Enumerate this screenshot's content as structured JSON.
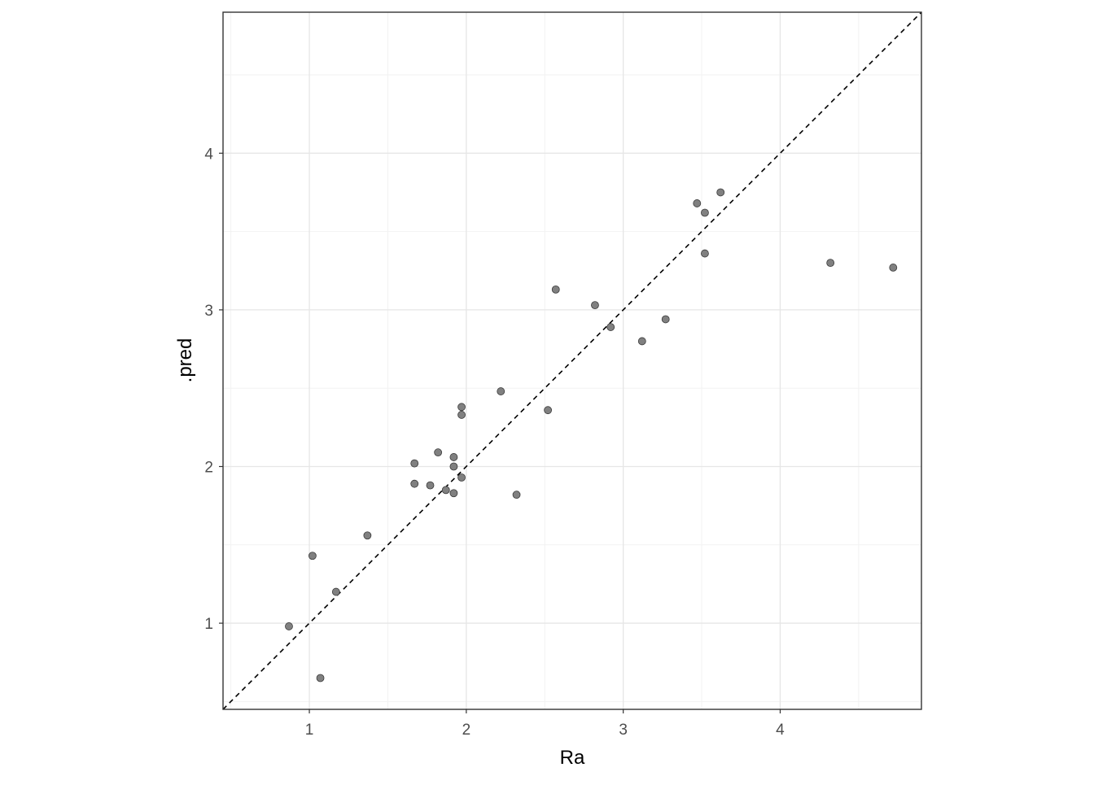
{
  "chart_data": {
    "type": "scatter",
    "title": "",
    "xlabel": "Ra",
    "ylabel": ".pred",
    "xlim": [
      0.45,
      4.9
    ],
    "ylim": [
      0.45,
      4.9
    ],
    "x_ticks": [
      1,
      2,
      3,
      4
    ],
    "y_ticks": [
      1,
      2,
      3,
      4
    ],
    "x_tick_labels": [
      "1",
      "2",
      "3",
      "4"
    ],
    "y_tick_labels": [
      "1",
      "2",
      "3",
      "4"
    ],
    "grid": true,
    "reference_line": {
      "type": "identity",
      "slope": 1,
      "intercept": 0,
      "style": "dashed",
      "color": "#000000"
    },
    "colors": {
      "point_fill": "#808080",
      "point_stroke": "#3a3a3a",
      "grid_major": "#e6e6e6",
      "grid_minor": "#f2f2f2",
      "panel_border": "#333333"
    },
    "points": [
      {
        "x": 0.87,
        "y": 0.98
      },
      {
        "x": 1.02,
        "y": 1.43
      },
      {
        "x": 1.07,
        "y": 0.65
      },
      {
        "x": 1.17,
        "y": 1.2
      },
      {
        "x": 1.37,
        "y": 1.56
      },
      {
        "x": 1.67,
        "y": 2.02
      },
      {
        "x": 1.67,
        "y": 1.89
      },
      {
        "x": 1.77,
        "y": 1.88
      },
      {
        "x": 1.82,
        "y": 2.09
      },
      {
        "x": 1.87,
        "y": 1.85
      },
      {
        "x": 1.92,
        "y": 2.06
      },
      {
        "x": 1.92,
        "y": 2.0
      },
      {
        "x": 1.92,
        "y": 1.83
      },
      {
        "x": 1.97,
        "y": 2.38
      },
      {
        "x": 1.97,
        "y": 2.33
      },
      {
        "x": 1.97,
        "y": 1.93
      },
      {
        "x": 2.22,
        "y": 2.48
      },
      {
        "x": 2.32,
        "y": 1.82
      },
      {
        "x": 2.52,
        "y": 2.36
      },
      {
        "x": 2.57,
        "y": 3.13
      },
      {
        "x": 2.82,
        "y": 3.03
      },
      {
        "x": 2.92,
        "y": 2.89
      },
      {
        "x": 3.12,
        "y": 2.8
      },
      {
        "x": 3.27,
        "y": 2.94
      },
      {
        "x": 3.47,
        "y": 3.68
      },
      {
        "x": 3.52,
        "y": 3.62
      },
      {
        "x": 3.52,
        "y": 3.36
      },
      {
        "x": 3.62,
        "y": 3.75
      },
      {
        "x": 4.32,
        "y": 3.3
      },
      {
        "x": 4.72,
        "y": 3.27
      }
    ]
  }
}
